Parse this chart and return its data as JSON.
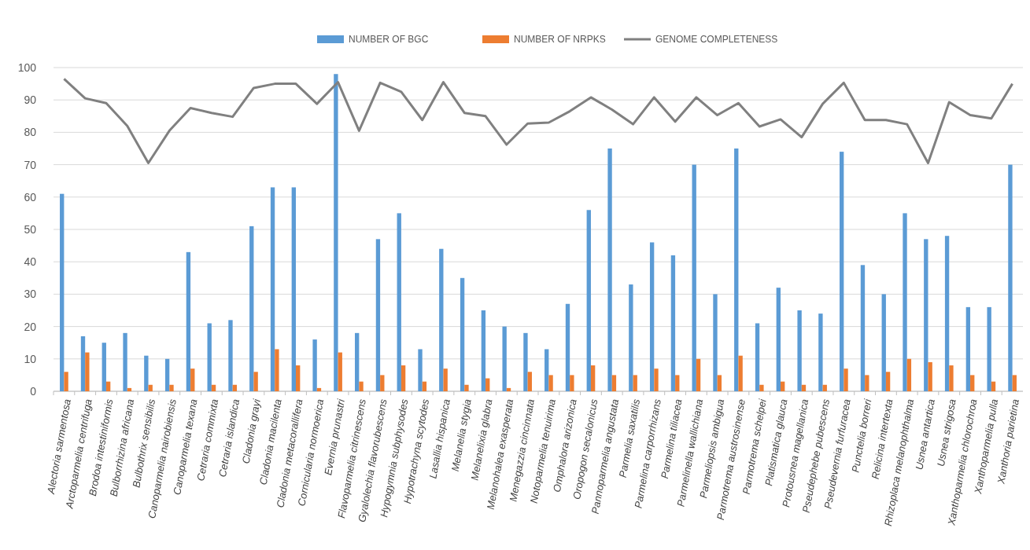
{
  "chart_data": {
    "type": "bar",
    "categories": [
      "Alectoria sarmentosa",
      "Arctoparmelia centrifuga",
      "Brodoa intestiniformis",
      "Bulborrhizina africana",
      "Bulbothrix sensibilis",
      "Canoparmelia nairobiensis",
      "Canoparmelia texana",
      "Cetraria commixta",
      "Cetraria islandica",
      "Cladonia grayi",
      "Cladonia macilenta",
      "Cladonia metacorallifera",
      "Cornicularia normoerica",
      "Evernia prunastri",
      "Flavoparmelia citrinescens",
      "Gyalolechia flavorubescens",
      "Hypogymnia subphysodes",
      "Hypotrachyna scytodes",
      "Lasallia hispanica",
      "Melanelia stygia",
      "Melanelixia glabra",
      "Melanohalea exasperata",
      "Menegazzia cincinnata",
      "Notoparmelia tenuirima",
      "Omphalora arizonica",
      "Oropogon secalonicus",
      "Pannoparmelia angustata",
      "Parmelia saxatilis",
      "Parmelina carporrhizans",
      "Parmelina tiliacea",
      "Parmelinella wallichiana",
      "Parmeliopsis ambigua",
      "Parmotrema austrosinense",
      "Parmotrema schelpei",
      "Platismatica glauca",
      "Protousnea magellanica",
      "Pseudephebe pubescens",
      "Pseudevernia furfuracea",
      "Punctelia borreri",
      "Relicina intertexta",
      "Rhizoplaca melanophthalma",
      "Usnea antartica",
      "Usnea strigosa",
      "Xanthoparmelia chlorochroa",
      "Xanthoparmelia pulla",
      "Xanthoria parietina"
    ],
    "series": [
      {
        "name": "NUMBER OF BGC",
        "color": "#5b9bd5",
        "values": [
          61,
          17,
          15,
          18,
          11,
          10,
          43,
          21,
          22,
          51,
          63,
          63,
          16,
          98,
          18,
          47,
          55,
          13,
          44,
          35,
          25,
          20,
          18,
          13,
          27,
          56,
          75,
          33,
          46,
          42,
          70,
          30,
          75,
          21,
          32,
          25,
          24,
          74,
          39,
          30,
          55,
          47,
          48,
          26,
          26,
          70
        ]
      },
      {
        "name": "NUMBER OF NRPKS",
        "color": "#ed7d31",
        "values": [
          6,
          12,
          3,
          1,
          2,
          2,
          7,
          2,
          2,
          6,
          13,
          8,
          1,
          12,
          3,
          5,
          8,
          3,
          7,
          2,
          4,
          1,
          6,
          5,
          5,
          8,
          5,
          5,
          7,
          5,
          10,
          5,
          11,
          2,
          3,
          2,
          2,
          7,
          5,
          6,
          10,
          9,
          8,
          5,
          3,
          5
        ]
      },
      {
        "name": "GENOME COMPLETENESS",
        "type": "line",
        "color": "#808080",
        "values": [
          96.5,
          90.5,
          89,
          82,
          70.5,
          80.5,
          87.5,
          86,
          84.8,
          93.7,
          95,
          95,
          88.8,
          95.5,
          80.5,
          95.3,
          92.5,
          83.8,
          95.5,
          86,
          85,
          76.2,
          82.7,
          83,
          86.5,
          90.8,
          87,
          82.5,
          90.8,
          83.3,
          90.8,
          85.3,
          89,
          81.8,
          84,
          78.5,
          88.8,
          95.3,
          83.8,
          83.8,
          82.5,
          70.5,
          89.3,
          85.3,
          84.3,
          95
        ]
      }
    ],
    "ylim": [
      0,
      100
    ],
    "yticks": [
      0,
      10,
      20,
      30,
      40,
      50,
      60,
      70,
      80,
      90,
      100
    ],
    "grid": "y",
    "legend": "top",
    "marker": "none",
    "line_style": "solid"
  }
}
